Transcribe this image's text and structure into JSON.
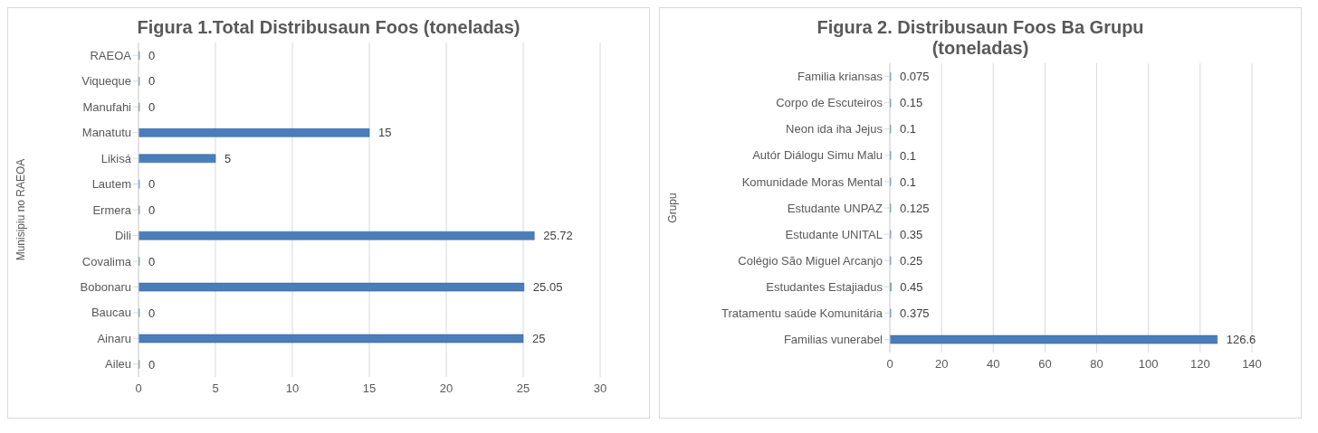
{
  "chart_data": [
    {
      "type": "bar",
      "orientation": "horizontal",
      "title": "Figura 1.Total Distribusaun  Foos (toneladas)",
      "ylabel": "Munisipiu no RAEOA",
      "categories": [
        "RAEOA",
        "Viqueque",
        "Manufahi",
        "Manatutu",
        "Likisá",
        "Lautem",
        "Ermera",
        "Dili",
        "Covalima",
        "Bobonaru",
        "Baucau",
        "Ainaru",
        "Aileu"
      ],
      "values": [
        0,
        0,
        0,
        15,
        5,
        0,
        0,
        25.72,
        0,
        25.05,
        0,
        25,
        0
      ],
      "color": "#4a7ebb",
      "xlim": [
        0,
        30
      ],
      "xticks": [
        0,
        5,
        10,
        15,
        20,
        25,
        30
      ],
      "grid": "x",
      "data_labels": true
    },
    {
      "type": "bar",
      "orientation": "horizontal",
      "title": "Figura 2. Distribusaun  Foos Ba Grupu (toneladas)",
      "ylabel": "Grupu",
      "categories": [
        "Familia kriansas",
        "Corpo de Escuteiros",
        "Neon ida iha Jejus",
        "Autór Diálogu Simu  Malu",
        "Komunidade Moras Mental",
        "Estudante UNPAZ",
        "Estudante UNITAL",
        "Colégio São Miguel Arcanjo",
        "Estudantes Estajiadus",
        "Tratamentu saúde Komunitária",
        "Familias vunerabel"
      ],
      "values": [
        0.075,
        0.15,
        0.1,
        0.1,
        0.1,
        0.125,
        0.35,
        0.25,
        0.45,
        0.375,
        126.6
      ],
      "color": "#4a7ebb",
      "xlim": [
        0,
        140
      ],
      "xticks": [
        0,
        20,
        40,
        60,
        80,
        100,
        120,
        140
      ],
      "grid": "x",
      "data_labels": true
    }
  ]
}
